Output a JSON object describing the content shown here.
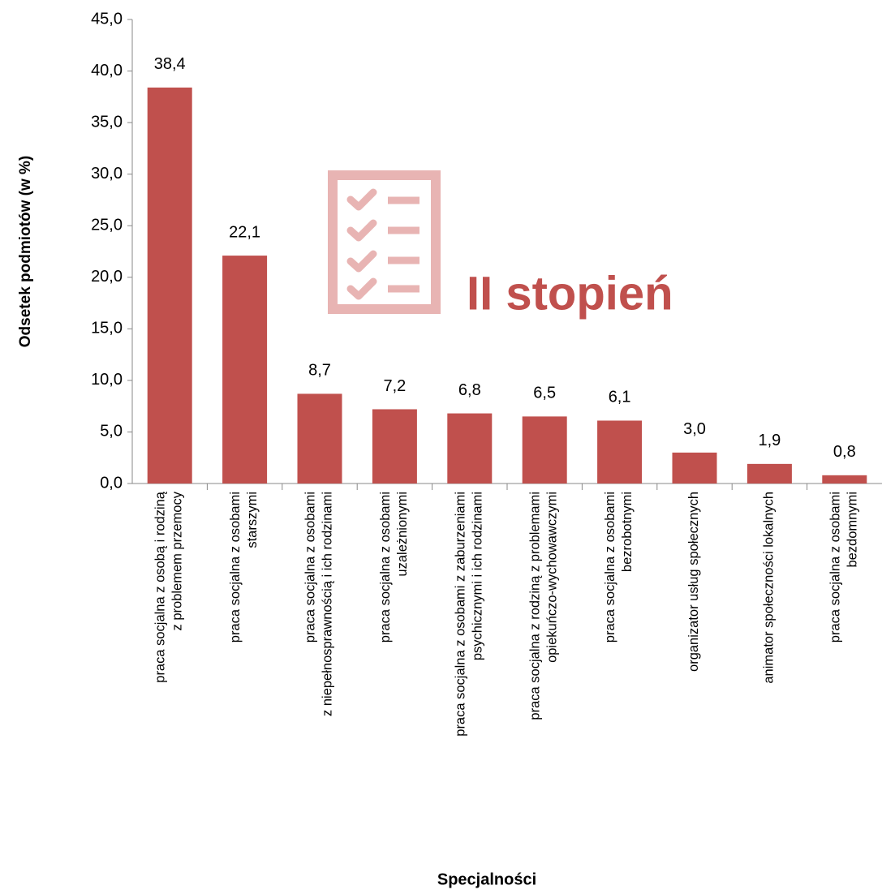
{
  "chart_data": {
    "type": "bar",
    "annotation": "II stopień",
    "y_label": "Odsetek podmiotów (w %)",
    "x_label": "Specjalności",
    "categories": [
      "praca socjalna z osobą i rodziną\nz problemem przemocy",
      "praca socjalna z osobami\nstarszymi",
      "praca socjalna z osobami\nz niepełnosprawnością i ich rodzinami",
      "praca socjalna z osobami\nuzależnionymi",
      "praca socjalna z osobami z zaburzeniami\npsychicznymi i ich rodzinami",
      "praca socjalna z rodziną z problemami\nopiekuńczo-wychowawczymi",
      "praca socjalna z osobami\nbezrobotnymi",
      "organizator usług społecznych",
      "animator społeczności lokalnych",
      "praca socjalna z osobami\nbezdomnymi"
    ],
    "values": [
      38.4,
      22.1,
      8.7,
      7.2,
      6.8,
      6.5,
      6.1,
      3.0,
      1.9,
      0.8
    ],
    "value_labels": [
      "38,4",
      "22,1",
      "8,7",
      "7,2",
      "6,8",
      "6,5",
      "6,1",
      "3,0",
      "1,9",
      "0,8"
    ],
    "color": "#c0504d",
    "ylim": [
      0,
      45
    ],
    "yticks": [
      {
        "value": 0,
        "label": "0,0"
      },
      {
        "value": 5,
        "label": "5,0"
      },
      {
        "value": 10,
        "label": "10,0"
      },
      {
        "value": 15,
        "label": "15,0"
      },
      {
        "value": 20,
        "label": "20,0"
      },
      {
        "value": 25,
        "label": "25,0"
      },
      {
        "value": 30,
        "label": "30,0"
      },
      {
        "value": 35,
        "label": "35,0"
      },
      {
        "value": 40,
        "label": "40,0"
      },
      {
        "value": 45,
        "label": "45,0"
      }
    ],
    "grid": false
  }
}
